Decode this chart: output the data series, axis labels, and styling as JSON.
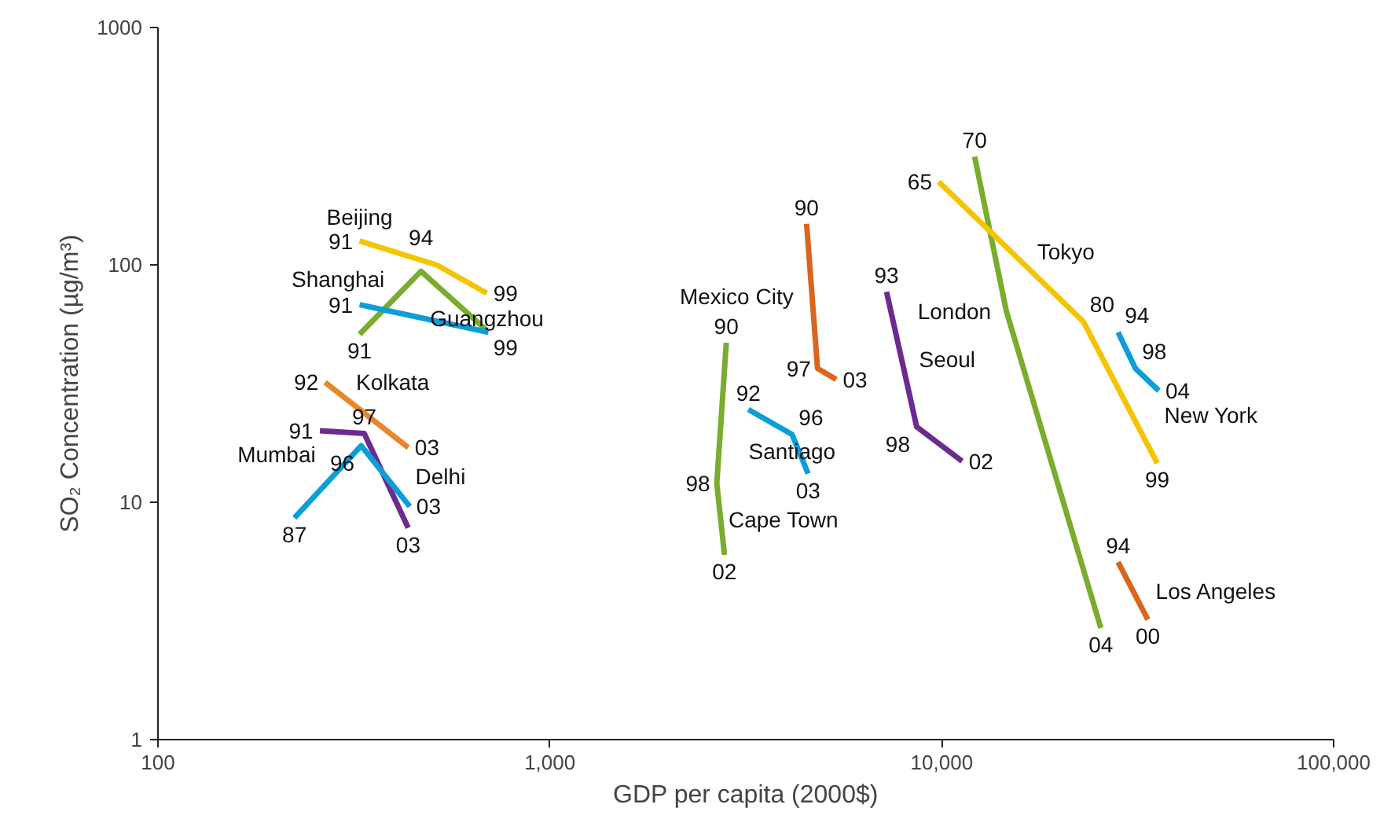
{
  "chart_data": {
    "type": "line",
    "xlabel": "GDP per capita (2000$)",
    "ylabel": "SO₂ Concentration (µg/m³)",
    "log": "xy",
    "grid": false,
    "legend": false,
    "marker": "none",
    "line_style": "solid",
    "xlim": [
      100,
      100000
    ],
    "ylim": [
      1,
      1000
    ],
    "xticks": [
      100,
      {
        "value": 1000,
        "label": "1,000"
      },
      {
        "value": 10000,
        "label": "10,000"
      },
      {
        "value": 100000,
        "label": "100,000"
      }
    ],
    "yticks": [
      1,
      10,
      100,
      1000
    ],
    "series": [
      {
        "name": "Beijing",
        "color": "#f5c400",
        "x": [
          327,
          514,
          690
        ],
        "values": [
          126,
          100,
          76
        ]
      },
      {
        "name": "Shanghai",
        "color": "#7aac2e",
        "x": [
          327,
          469,
          690
        ],
        "values": [
          51,
          94,
          53
        ]
      },
      {
        "name": "Guangzhou",
        "color": "#0b9ed9",
        "x": [
          327,
          697
        ],
        "values": [
          68,
          52
        ]
      },
      {
        "name": "Kolkata",
        "color": "#e8862a",
        "x": [
          267,
          435
        ],
        "values": [
          32,
          17
        ]
      },
      {
        "name": "Mumbai",
        "color": "#6c2b8f",
        "x": [
          259,
          336,
          435
        ],
        "values": [
          20,
          19.5,
          7.8
        ]
      },
      {
        "name": "Delhi",
        "color": "#0b9ed9",
        "x": [
          223,
          330,
          439
        ],
        "values": [
          8.6,
          17.3,
          9.6
        ]
      },
      {
        "name": "Mexico City",
        "color": "#d9661e",
        "x": [
          4520,
          4820,
          5380
        ],
        "values": [
          149,
          36.6,
          32.9
        ]
      },
      {
        "name": "Cape Town",
        "color": "#7aac2e",
        "x": [
          2820,
          2667,
          2790
        ],
        "values": [
          47,
          12,
          6.0
        ]
      },
      {
        "name": "Santiago",
        "color": "#0b9ed9",
        "x": [
          3210,
          4150,
          4560
        ],
        "values": [
          24.6,
          19.3,
          13.2
        ]
      },
      {
        "name": "Seoul",
        "color": "#6c2b8f",
        "x": [
          7230,
          8630,
          11270
        ],
        "values": [
          77,
          20.8,
          14.9
        ]
      },
      {
        "name": "London",
        "color": "#7aac2e",
        "x": [
          12130,
          14610,
          25470
        ],
        "values": [
          286,
          64,
          2.95
        ]
      },
      {
        "name": "Tokyo",
        "color": "#f5c400",
        "x": [
          9820,
          22960,
          35480
        ],
        "values": [
          224,
          57.8,
          14.6
        ]
      },
      {
        "name": "New York",
        "color": "#0b9ed9",
        "x": [
          28180,
          31200,
          35800
        ],
        "values": [
          52,
          36.6,
          29.5
        ]
      },
      {
        "name": "Los Angeles",
        "color": "#d9661e",
        "x": [
          28180,
          33570
        ],
        "values": [
          5.6,
          3.2
        ]
      }
    ],
    "annotations": [
      {
        "text": "91",
        "x": 327,
        "y": 126
      },
      {
        "text": "99",
        "x": 690,
        "y": 76
      },
      {
        "text": "91",
        "x": 327,
        "y": 68
      },
      {
        "text": "91",
        "x": 327,
        "y": 51
      },
      {
        "text": "94",
        "x": 469,
        "y": 94
      },
      {
        "text": "99",
        "x": 690,
        "y": 53
      },
      {
        "text": "92",
        "x": 267,
        "y": 32
      },
      {
        "text": "03",
        "x": 435,
        "y": 17
      },
      {
        "text": "91",
        "x": 259,
        "y": 20
      },
      {
        "text": "97",
        "x": 336,
        "y": 19.5
      },
      {
        "text": "03",
        "x": 435,
        "y": 7.8
      },
      {
        "text": "87",
        "x": 223,
        "y": 8.6
      },
      {
        "text": "96",
        "x": 330,
        "y": 17.3
      },
      {
        "text": "03",
        "x": 439,
        "y": 9.6
      },
      {
        "text": "90",
        "x": 4520,
        "y": 149
      },
      {
        "text": "97",
        "x": 4820,
        "y": 36.6
      },
      {
        "text": "03",
        "x": 5380,
        "y": 32.9
      },
      {
        "text": "90",
        "x": 2820,
        "y": 47
      },
      {
        "text": "98",
        "x": 2667,
        "y": 12
      },
      {
        "text": "02",
        "x": 2790,
        "y": 6.0
      },
      {
        "text": "92",
        "x": 3210,
        "y": 24.6
      },
      {
        "text": "96",
        "x": 4150,
        "y": 19.3
      },
      {
        "text": "03",
        "x": 4560,
        "y": 13.2
      },
      {
        "text": "93",
        "x": 7230,
        "y": 77
      },
      {
        "text": "98",
        "x": 8630,
        "y": 20.8
      },
      {
        "text": "02",
        "x": 11270,
        "y": 14.9
      },
      {
        "text": "70",
        "x": 12130,
        "y": 286
      },
      {
        "text": "04",
        "x": 25470,
        "y": 2.95
      },
      {
        "text": "65",
        "x": 9820,
        "y": 224
      },
      {
        "text": "80",
        "x": 22960,
        "y": 57.8
      },
      {
        "text": "99",
        "x": 35480,
        "y": 14.6
      },
      {
        "text": "94",
        "x": 28180,
        "y": 52
      },
      {
        "text": "98",
        "x": 31200,
        "y": 36.6
      },
      {
        "text": "04",
        "x": 35800,
        "y": 29.5
      },
      {
        "text": "94",
        "x": 28180,
        "y": 5.6
      },
      {
        "text": "00",
        "x": 33570,
        "y": 3.2
      }
    ]
  }
}
